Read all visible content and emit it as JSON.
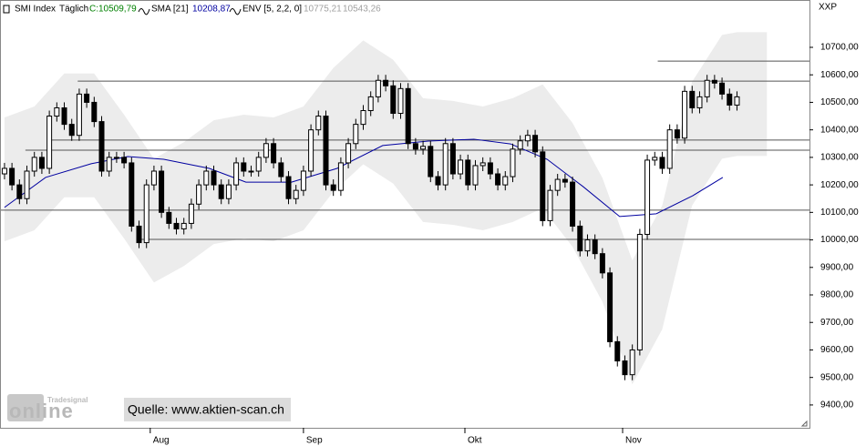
{
  "chart_data": {
    "type": "candlestick",
    "title": "SMI Index",
    "period": "Täglich",
    "last_label": "C:10509,79",
    "indicators": [
      {
        "name": "SMA [21]",
        "label": "10208,87",
        "color": "#0000a0"
      },
      {
        "name": "ENV [5, 2,2, 0]",
        "labels": [
          "10775,21",
          "10543,26"
        ],
        "color": "#a0a0a0"
      }
    ],
    "y_label": "XXP",
    "source": "Quelle: www.aktien-scan.ch",
    "logo": {
      "top": "Tradesignal",
      "main": "online"
    },
    "xlim": [
      -0.6,
      107.7
    ],
    "ylim": [
      9317,
      10872
    ],
    "xticks": [
      {
        "value": 19.5,
        "label": "Aug"
      },
      {
        "value": 40,
        "label": "Sep"
      },
      {
        "value": 61.6,
        "label": "Okt"
      },
      {
        "value": 82.7,
        "label": "Nov"
      }
    ],
    "yticks": [
      {
        "value": 9400,
        "label": "9400,00"
      },
      {
        "value": 9500,
        "label": "9500,00"
      },
      {
        "value": 9600,
        "label": "9600,00"
      },
      {
        "value": 9700,
        "label": "9700,00"
      },
      {
        "value": 9800,
        "label": "9800,00"
      },
      {
        "value": 9900,
        "label": "9900,00"
      },
      {
        "value": 10000,
        "label": "10000,00"
      },
      {
        "value": 10100,
        "label": "10100,00"
      },
      {
        "value": 10200,
        "label": "10200,00"
      },
      {
        "value": 10300,
        "label": "10300,00"
      },
      {
        "value": 10400,
        "label": "10400,00"
      },
      {
        "value": 10500,
        "label": "10500,00"
      },
      {
        "value": 10600,
        "label": "10600,00"
      },
      {
        "value": 10700,
        "label": "10700,00"
      }
    ],
    "open": [
      10240,
      10260,
      10200,
      10150,
      10250,
      10300,
      10260,
      10450,
      10480,
      10420,
      10380,
      10530,
      10500,
      10430,
      10250,
      10300,
      10300,
      10280,
      10050,
      9990,
      10200,
      10250,
      10100,
      10060,
      10040,
      10060,
      10130,
      10200,
      10250,
      10200,
      10150,
      10200,
      10280,
      10250,
      10250,
      10300,
      10350,
      10280,
      10230,
      10150,
      10180,
      10250,
      10400,
      10450,
      10200,
      10180,
      10280,
      10350,
      10420,
      10470,
      10520,
      10580,
      10560,
      10460,
      10550,
      10350,
      10330,
      10340,
      10230,
      10200,
      10350,
      10240,
      10290,
      10200,
      10270,
      10280,
      10240,
      10200,
      10230,
      10330,
      10360,
      10380,
      10320,
      10070,
      10180,
      10220,
      10210,
      10050,
      9960,
      10000,
      9950,
      9880,
      9630,
      9560,
      9510,
      9600,
      10020,
      10290,
      10300,
      10260,
      10400,
      10370,
      10540,
      10480,
      10520,
      10580,
      10570,
      10530,
      10490
    ],
    "high": [
      10280,
      10280,
      10220,
      10270,
      10320,
      10320,
      10470,
      10500,
      10500,
      10440,
      10550,
      10550,
      10520,
      10450,
      10320,
      10320,
      10320,
      10300,
      10070,
      10220,
      10270,
      10270,
      10120,
      10080,
      10080,
      10150,
      10220,
      10270,
      10270,
      10220,
      10220,
      10300,
      10300,
      10270,
      10320,
      10370,
      10370,
      10300,
      10250,
      10200,
      10270,
      10420,
      10470,
      10470,
      10220,
      10300,
      10370,
      10440,
      10490,
      10540,
      10600,
      10600,
      10580,
      10570,
      10570,
      10370,
      10360,
      10360,
      10250,
      10370,
      10370,
      10310,
      10310,
      10290,
      10300,
      10300,
      10260,
      10250,
      10350,
      10380,
      10400,
      10400,
      10340,
      10200,
      10240,
      10240,
      10230,
      10070,
      10020,
      10020,
      9970,
      9900,
      9650,
      9580,
      9620,
      10040,
      10310,
      10320,
      10320,
      10420,
      10420,
      10560,
      10560,
      10540,
      10600,
      10600,
      10590,
      10550,
      10540
    ],
    "low": [
      10220,
      10180,
      10130,
      10130,
      10230,
      10240,
      10240,
      10430,
      10400,
      10360,
      10360,
      10480,
      10410,
      10230,
      10230,
      10280,
      10260,
      10030,
      9970,
      9970,
      10180,
      10080,
      10040,
      10020,
      10020,
      10040,
      10110,
      10180,
      10180,
      10130,
      10130,
      10180,
      10230,
      10230,
      10230,
      10280,
      10260,
      10210,
      10130,
      10130,
      10160,
      10230,
      10380,
      10180,
      10160,
      10160,
      10260,
      10330,
      10400,
      10450,
      10500,
      10540,
      10440,
      10440,
      10330,
      10310,
      10310,
      10210,
      10180,
      10180,
      10220,
      10220,
      10180,
      10180,
      10250,
      10220,
      10180,
      10180,
      10210,
      10310,
      10340,
      10300,
      10050,
      10050,
      10160,
      10190,
      10030,
      9940,
      9940,
      9930,
      9860,
      9610,
      9540,
      9490,
      9490,
      9580,
      10000,
      10270,
      10240,
      10240,
      10350,
      10350,
      10460,
      10460,
      10500,
      10550,
      10510,
      10470,
      10470
    ],
    "close": [
      10260,
      10200,
      10150,
      10250,
      10300,
      10260,
      10450,
      10480,
      10420,
      10380,
      10530,
      10500,
      10430,
      10250,
      10300,
      10300,
      10280,
      10050,
      9990,
      10200,
      10250,
      10100,
      10060,
      10040,
      10060,
      10130,
      10200,
      10250,
      10200,
      10150,
      10200,
      10280,
      10250,
      10250,
      10300,
      10350,
      10280,
      10230,
      10150,
      10180,
      10250,
      10400,
      10450,
      10200,
      10180,
      10280,
      10350,
      10420,
      10470,
      10520,
      10580,
      10560,
      10460,
      10550,
      10350,
      10330,
      10340,
      10230,
      10200,
      10350,
      10240,
      10290,
      10200,
      10270,
      10280,
      10240,
      10200,
      10230,
      10330,
      10360,
      10380,
      10320,
      10070,
      10180,
      10220,
      10210,
      10050,
      9960,
      10000,
      9950,
      9880,
      9630,
      9560,
      9510,
      9600,
      10020,
      10290,
      10300,
      10260,
      10400,
      10370,
      10540,
      10480,
      10520,
      10580,
      10570,
      10530,
      10490,
      10520
    ],
    "sma": {
      "x": [
        0,
        5.5,
        11.6,
        16.5,
        21.3,
        27.4,
        32.3,
        38.4,
        44.5,
        50.6,
        56.7,
        62.8,
        67.7,
        72.6,
        77.4,
        82.3,
        87.2,
        92.1,
        96.1
      ],
      "values": [
        10118,
        10227,
        10277,
        10303,
        10293,
        10260,
        10210,
        10210,
        10260,
        10343,
        10359,
        10366,
        10349,
        10293,
        10194,
        10085,
        10095,
        10161,
        10227
      ]
    },
    "envelope": {
      "x": [
        0,
        4,
        8,
        12,
        16,
        20,
        24,
        28,
        32,
        36,
        40,
        44,
        48,
        52,
        56,
        60,
        64,
        68,
        72,
        76,
        80,
        84,
        88,
        92,
        96,
        98,
        100,
        102
      ],
      "upper": [
        10445,
        10485,
        10605,
        10605,
        10455,
        10295,
        10355,
        10435,
        10455,
        10445,
        10485,
        10625,
        10725,
        10655,
        10515,
        10505,
        10485,
        10515,
        10565,
        10425,
        10225,
        9925,
        10125,
        10575,
        10745,
        10755,
        10755,
        10755
      ],
      "lower": [
        9995,
        10035,
        10155,
        10155,
        10005,
        9845,
        9905,
        9985,
        10005,
        9995,
        10035,
        10175,
        10275,
        10205,
        10065,
        10055,
        10035,
        10065,
        10115,
        9975,
        9775,
        9475,
        9675,
        10125,
        10295,
        10305,
        10305,
        10305
      ]
    },
    "horizontal_lines": [
      {
        "value": 10650,
        "start": 87.4
      },
      {
        "value": 10577,
        "start": 9.8
      },
      {
        "value": 10363,
        "start": 5.7
      },
      {
        "value": 10326,
        "start": 2.8
      },
      {
        "value": 10108,
        "start": -0.6
      },
      {
        "value": 10002,
        "start": 18.3
      }
    ]
  }
}
